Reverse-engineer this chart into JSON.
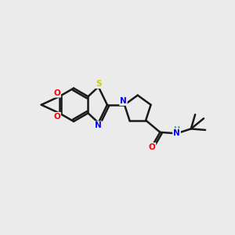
{
  "bg_color": "#ebebeb",
  "bond_color": "#1a1a1a",
  "bond_width": 1.8,
  "atom_colors": {
    "S": "#cccc00",
    "N": "#0000ee",
    "O": "#ff0000",
    "H": "#4a9a9a",
    "C": "#1a1a1a"
  },
  "figsize": [
    3.0,
    3.0
  ],
  "dpi": 100
}
